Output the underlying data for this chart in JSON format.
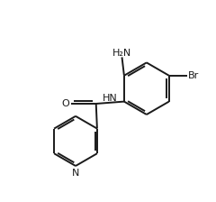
{
  "title": "",
  "bg_color": "#ffffff",
  "line_color": "#1a1a1a",
  "label_color": "#1a1a1a",
  "figsize": [
    2.4,
    2.24
  ],
  "dpi": 100,
  "lw": 1.4,
  "fs": 8.0,
  "xlim": [
    0,
    10
  ],
  "ylim": [
    0,
    9.3
  ]
}
